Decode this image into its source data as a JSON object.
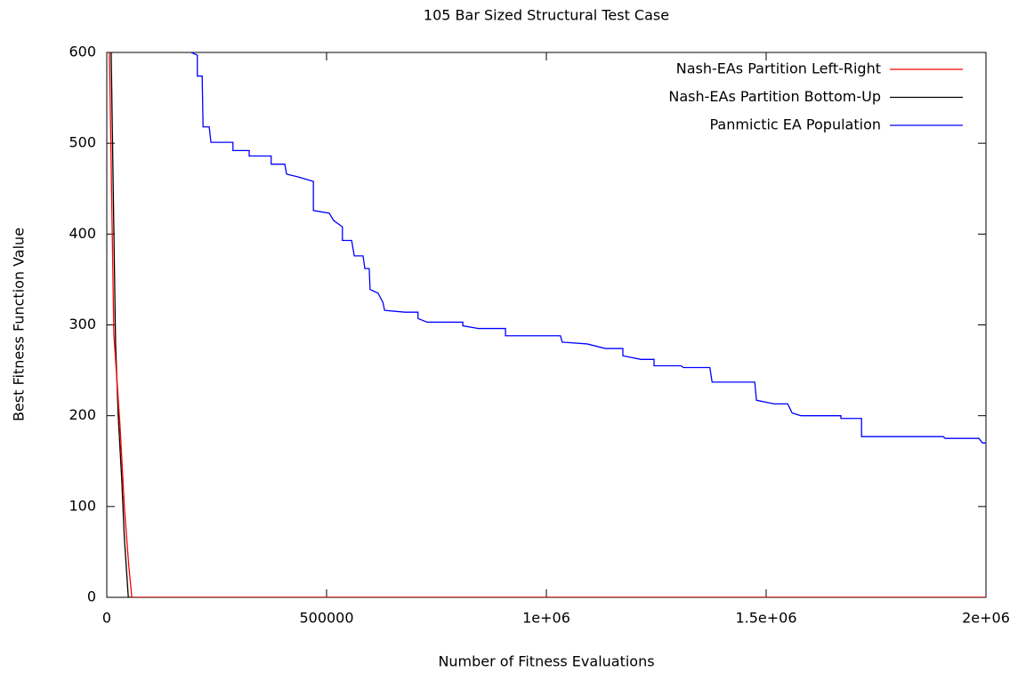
{
  "chart_data": {
    "type": "line",
    "title": "105 Bar Sized Structural Test Case",
    "xlabel": "Number of Fitness Evaluations",
    "ylabel": "Best Fitness Function Value",
    "xlim": [
      0,
      2000000
    ],
    "ylim": [
      0,
      600
    ],
    "xticks": [
      0,
      500000,
      {
        "value": 1000000,
        "label": "1e+06"
      },
      {
        "value": 1500000,
        "label": "1.5e+06"
      },
      {
        "value": 2000000,
        "label": "2e+06"
      }
    ],
    "yticks": [
      0,
      100,
      200,
      300,
      400,
      500,
      600
    ],
    "legend": "top-right",
    "series": [
      {
        "name": "Nash-EAs Partition Left-Right",
        "color": "#ff0000",
        "x": [
          6000,
          16000,
          30000,
          40000,
          50000,
          57000,
          2000000
        ],
        "values": [
          600,
          290,
          190,
          100,
          35,
          0,
          0
        ]
      },
      {
        "name": "Nash-EAs Partition Bottom-Up",
        "color": "#000000",
        "x": [
          10000,
          20000,
          26000,
          34000,
          40000,
          49000,
          2000000
        ],
        "values": [
          600,
          280,
          200,
          130,
          65,
          0,
          0
        ]
      },
      {
        "name": "Panmictic EA Population",
        "color": "#0000ff",
        "x": [
          192000,
          206000,
          206000,
          217000,
          219000,
          233000,
          237000,
          287000,
          287000,
          324000,
          324000,
          374000,
          374000,
          405000,
          409000,
          435000,
          470000,
          470000,
          506000,
          516000,
          536000,
          536000,
          557000,
          563000,
          583000,
          587000,
          597000,
          599000,
          617000,
          628000,
          632000,
          678000,
          708000,
          708000,
          729000,
          810000,
          810000,
          846000,
          907000,
          907000,
          1032000,
          1036000,
          1093000,
          1134000,
          1174000,
          1174000,
          1215000,
          1245000,
          1245000,
          1306000,
          1312000,
          1372000,
          1377000,
          1474000,
          1478000,
          1518000,
          1549000,
          1559000,
          1579000,
          1670000,
          1670000,
          1717000,
          1717000,
          1903000,
          1907000,
          1984000,
          1992000,
          2000000
        ],
        "values": [
          600,
          597,
          574,
          574,
          518,
          518,
          501,
          501,
          492,
          492,
          486,
          486,
          477,
          477,
          466,
          463,
          458,
          426,
          423,
          415,
          408,
          393,
          393,
          376,
          376,
          362,
          362,
          339,
          335,
          325,
          316,
          314,
          314,
          307,
          303,
          303,
          299,
          296,
          296,
          288,
          288,
          281,
          279,
          274,
          274,
          266,
          262,
          262,
          255,
          255,
          253,
          253,
          237,
          237,
          217,
          213,
          213,
          203,
          200,
          200,
          197,
          197,
          177,
          177,
          175,
          175,
          170,
          170
        ]
      }
    ]
  }
}
